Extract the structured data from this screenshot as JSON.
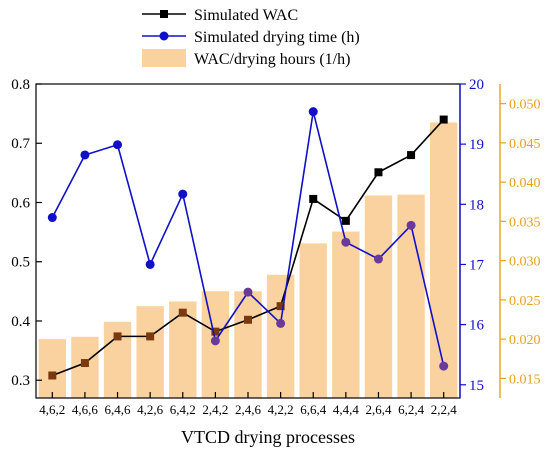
{
  "chart_data": {
    "type": "bar",
    "xlabel": "VTCD drying processes",
    "categories": [
      "4,6,2",
      "4,6,6",
      "6,4,6",
      "4,2,6",
      "6,4,2",
      "2,4,2",
      "2,4,6",
      "4,2,2",
      "6,6,4",
      "4,4,4",
      "2,6,4",
      "6,2,4",
      "2,2,4"
    ],
    "axes": {
      "left": {
        "ylim": [
          0.27,
          0.8
        ],
        "ticks": [
          0.3,
          0.4,
          0.5,
          0.6,
          0.7,
          0.8
        ],
        "tick_labels": [
          "0.3",
          "0.4",
          "0.5",
          "0.6",
          "0.7",
          "0.8"
        ],
        "color": "#000000"
      },
      "right_inner": {
        "ylim": [
          14.78,
          20
        ],
        "ticks": [
          15,
          16,
          17,
          18,
          19,
          20
        ],
        "tick_labels": [
          "15",
          "16",
          "17",
          "18",
          "19",
          "20"
        ],
        "color": "#1010c8"
      },
      "right_outer": {
        "ylim": [
          0.0125,
          0.0525
        ],
        "ticks": [
          0.015,
          0.02,
          0.025,
          0.03,
          0.035,
          0.04,
          0.045,
          0.05
        ],
        "tick_labels": [
          "0.015",
          "0.020",
          "0.025",
          "0.030",
          "0.035",
          "0.040",
          "0.045",
          "0.050"
        ],
        "color": "#e8a020"
      }
    },
    "series": [
      {
        "name": "Simulated WAC",
        "kind": "line",
        "axis": "left",
        "color": "#000000",
        "marker": "square",
        "values": [
          0.308,
          0.329,
          0.374,
          0.374,
          0.414,
          0.382,
          0.402,
          0.425,
          0.606,
          0.569,
          0.651,
          0.68,
          0.74
        ]
      },
      {
        "name": "Simulated drying time (h)",
        "kind": "line",
        "axis": "right_inner",
        "color": "#1010c8",
        "marker": "circle",
        "values": [
          17.78,
          18.82,
          18.99,
          17.0,
          18.17,
          15.73,
          16.54,
          16.02,
          19.54,
          17.37,
          17.09,
          17.65,
          15.31
        ]
      },
      {
        "name": "WAC/drying hours (1/h)",
        "kind": "bar",
        "axis": "right_outer",
        "color": "#fad2a0",
        "values": [
          0.02,
          0.0203,
          0.0222,
          0.0242,
          0.0248,
          0.0261,
          0.0261,
          0.0282,
          0.0322,
          0.0337,
          0.0383,
          0.0384,
          0.0476
        ]
      }
    ],
    "legend": {
      "placement": "top-center",
      "entries": [
        "Simulated WAC",
        "Simulated drying time (h)",
        "WAC/drying hours (1/h)"
      ]
    },
    "grid": false
  }
}
